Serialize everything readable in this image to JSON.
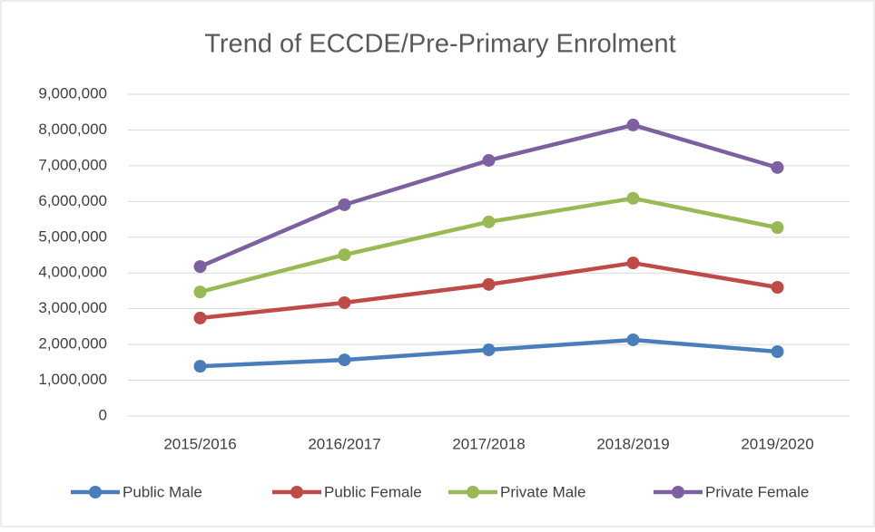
{
  "chart_data": {
    "type": "stacked_line",
    "title": "Trend of ECCDE/Pre-Primary Enrolment",
    "categories": [
      "2015/2016",
      "2016/2017",
      "2017/2018",
      "2018/2019",
      "2019/2020"
    ],
    "series": [
      {
        "name": "Public Male",
        "color": "#4a7ebb",
        "values": [
          1390000,
          1570000,
          1850000,
          2130000,
          1800000
        ]
      },
      {
        "name": "Public Female",
        "color": "#be4b48",
        "values": [
          1350000,
          1600000,
          1830000,
          2150000,
          1800000
        ]
      },
      {
        "name": "Private Male",
        "color": "#98b954",
        "values": [
          730000,
          1340000,
          1750000,
          1810000,
          1670000
        ]
      },
      {
        "name": "Private Female",
        "color": "#7d60a0",
        "values": [
          710000,
          1400000,
          1720000,
          2050000,
          1680000
        ]
      }
    ],
    "ylim": [
      0,
      9000000
    ],
    "yticks": [
      0,
      {
        "value": 1000000,
        "label": "1,000,000"
      },
      {
        "value": 2000000,
        "label": "2,000,000"
      },
      {
        "value": 3000000,
        "label": "3,000,000"
      },
      {
        "value": 4000000,
        "label": "4,000,000"
      },
      {
        "value": 5000000,
        "label": "5,000,000"
      },
      {
        "value": 6000000,
        "label": "6,000,000"
      },
      {
        "value": 7000000,
        "label": "7,000,000"
      },
      {
        "value": 8000000,
        "label": "8,000,000"
      },
      {
        "value": 9000000,
        "label": "9,000,000"
      }
    ],
    "grid": true,
    "legend": "bottom"
  }
}
